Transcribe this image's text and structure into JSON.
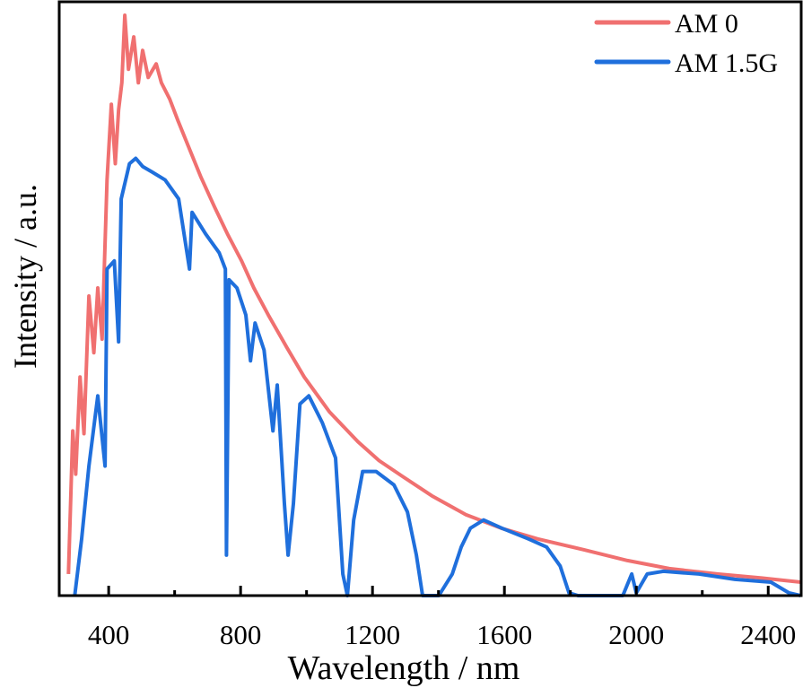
{
  "chart_data": {
    "type": "line",
    "xlabel": "Wavelength / nm",
    "ylabel": "Intensity / a.u.",
    "xlim": [
      250,
      2500
    ],
    "ylim": [
      0,
      2.2
    ],
    "xticks": [
      400,
      800,
      1200,
      1600,
      2000,
      2400
    ],
    "xticks_minor": [
      600,
      1000,
      1400,
      1800,
      2200
    ],
    "grid": false,
    "legend": "top-right",
    "series": [
      {
        "name": "AM 0",
        "color": "#f07070",
        "x": [
          278,
          291,
          300,
          313,
          325,
          340,
          355,
          367,
          380,
          395,
          408,
          420,
          430,
          440,
          449,
          460,
          476,
          490,
          503,
          520,
          544,
          560,
          585,
          610,
          640,
          680,
          721,
          760,
          803,
          840,
          884,
          940,
          993,
          1070,
          1156,
          1220,
          1293,
          1380,
          1483,
          1590,
          1701,
          1840,
          1973,
          2100,
          2245,
          2380,
          2498
        ],
        "y": [
          0.08,
          0.61,
          0.45,
          0.81,
          0.6,
          1.11,
          0.9,
          1.14,
          0.95,
          1.54,
          1.82,
          1.6,
          1.8,
          1.9,
          2.15,
          1.95,
          2.07,
          1.9,
          2.02,
          1.92,
          1.97,
          1.9,
          1.84,
          1.76,
          1.67,
          1.55,
          1.44,
          1.34,
          1.24,
          1.14,
          1.04,
          0.92,
          0.81,
          0.68,
          0.57,
          0.5,
          0.44,
          0.37,
          0.3,
          0.25,
          0.21,
          0.17,
          0.13,
          0.1,
          0.08,
          0.065,
          0.05
        ]
      },
      {
        "name": "AM 1.5G",
        "color": "#1f6fdc",
        "x": [
          297,
          318,
          340,
          367,
          389,
          395,
          417,
          430,
          438,
          463,
          482,
          503,
          531,
          571,
          612,
          645,
          653,
          694,
          735,
          754,
          757,
          765,
          789,
          816,
          830,
          844,
          871,
          898,
          911,
          933,
          944,
          960,
          980,
          1007,
          1048,
          1088,
          1110,
          1124,
          1143,
          1170,
          1211,
          1265,
          1306,
          1333,
          1352,
          1401,
          1442,
          1469,
          1497,
          1537,
          1592,
          1673,
          1728,
          1769,
          1796,
          1823,
          1959,
          1986,
          2000,
          2033,
          2082,
          2190,
          2299,
          2408,
          2463,
          2498
        ],
        "y": [
          0,
          0.21,
          0.48,
          0.74,
          0.48,
          1.21,
          1.24,
          0.94,
          1.47,
          1.6,
          1.62,
          1.59,
          1.57,
          1.54,
          1.47,
          1.21,
          1.42,
          1.34,
          1.27,
          1.21,
          0.15,
          1.17,
          1.14,
          1.04,
          0.87,
          1.01,
          0.91,
          0.61,
          0.78,
          0.34,
          0.15,
          0.34,
          0.71,
          0.74,
          0.64,
          0.51,
          0.08,
          0,
          0.28,
          0.46,
          0.46,
          0.41,
          0.31,
          0.15,
          0,
          0,
          0.08,
          0.18,
          0.25,
          0.28,
          0.25,
          0.21,
          0.18,
          0.11,
          0.01,
          0,
          0,
          0.08,
          0.01,
          0.08,
          0.09,
          0.08,
          0.06,
          0.05,
          0.01,
          0
        ]
      }
    ]
  }
}
